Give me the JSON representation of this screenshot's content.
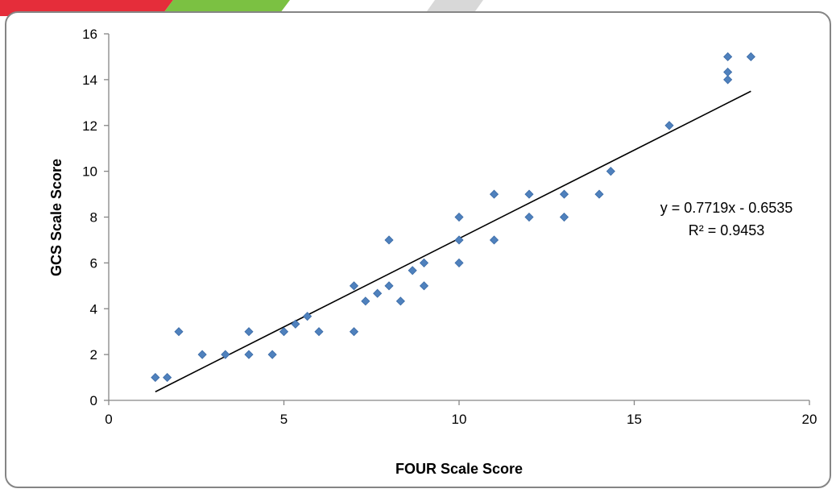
{
  "chart_data": {
    "type": "scatter",
    "title": "",
    "xlabel": "FOUR Scale Score",
    "ylabel": "GCS Scale Score",
    "xlim": [
      0,
      20
    ],
    "ylim": [
      0,
      16
    ],
    "xticks": [
      "0",
      "5",
      "10",
      "15",
      "20"
    ],
    "yticks": [
      "0",
      "2",
      "4",
      "6",
      "8",
      "10",
      "12",
      "14",
      "16"
    ],
    "grid": false,
    "legend": "none",
    "marker": "diamond",
    "marker_color": "#4f81bd",
    "points": [
      {
        "x": 1.33,
        "y": 1.0
      },
      {
        "x": 1.67,
        "y": 1.0
      },
      {
        "x": 2.0,
        "y": 3.0
      },
      {
        "x": 2.67,
        "y": 2.0
      },
      {
        "x": 3.33,
        "y": 2.0
      },
      {
        "x": 4.0,
        "y": 2.0
      },
      {
        "x": 4.0,
        "y": 3.0
      },
      {
        "x": 4.67,
        "y": 2.0
      },
      {
        "x": 5.0,
        "y": 3.0
      },
      {
        "x": 5.33,
        "y": 3.33
      },
      {
        "x": 5.67,
        "y": 3.67
      },
      {
        "x": 6.0,
        "y": 3.0
      },
      {
        "x": 7.0,
        "y": 3.0
      },
      {
        "x": 7.0,
        "y": 5.0
      },
      {
        "x": 7.33,
        "y": 4.33
      },
      {
        "x": 7.67,
        "y": 4.67
      },
      {
        "x": 8.0,
        "y": 5.0
      },
      {
        "x": 8.0,
        "y": 7.0
      },
      {
        "x": 8.33,
        "y": 4.33
      },
      {
        "x": 8.67,
        "y": 5.67
      },
      {
        "x": 9.0,
        "y": 5.0
      },
      {
        "x": 9.0,
        "y": 6.0
      },
      {
        "x": 10.0,
        "y": 6.0
      },
      {
        "x": 10.0,
        "y": 7.0
      },
      {
        "x": 10.0,
        "y": 8.0
      },
      {
        "x": 11.0,
        "y": 7.0
      },
      {
        "x": 11.0,
        "y": 9.0
      },
      {
        "x": 12.0,
        "y": 8.0
      },
      {
        "x": 12.0,
        "y": 9.0
      },
      {
        "x": 13.0,
        "y": 8.0
      },
      {
        "x": 13.0,
        "y": 9.0
      },
      {
        "x": 14.0,
        "y": 9.0
      },
      {
        "x": 14.33,
        "y": 10.0
      },
      {
        "x": 16.0,
        "y": 12.0
      },
      {
        "x": 17.67,
        "y": 14.0
      },
      {
        "x": 17.67,
        "y": 14.33
      },
      {
        "x": 17.67,
        "y": 15.0
      },
      {
        "x": 18.33,
        "y": 15.0
      }
    ],
    "trendline": {
      "type": "linear",
      "slope": 0.7719,
      "intercept": -0.6535,
      "x_range": [
        1.33,
        18.33
      ],
      "equation_label": "y = 0.7719x - 0.6535",
      "r2_label": "R² = 0.9453"
    }
  },
  "colors": {
    "frame_border": "#858585",
    "marker": "#4f81bd",
    "marker_edge": "#3a6aa6",
    "axis": "#868686",
    "trendline": "#000000",
    "top_strip_red": "#e52d3a",
    "top_strip_green": "#7bc142"
  }
}
